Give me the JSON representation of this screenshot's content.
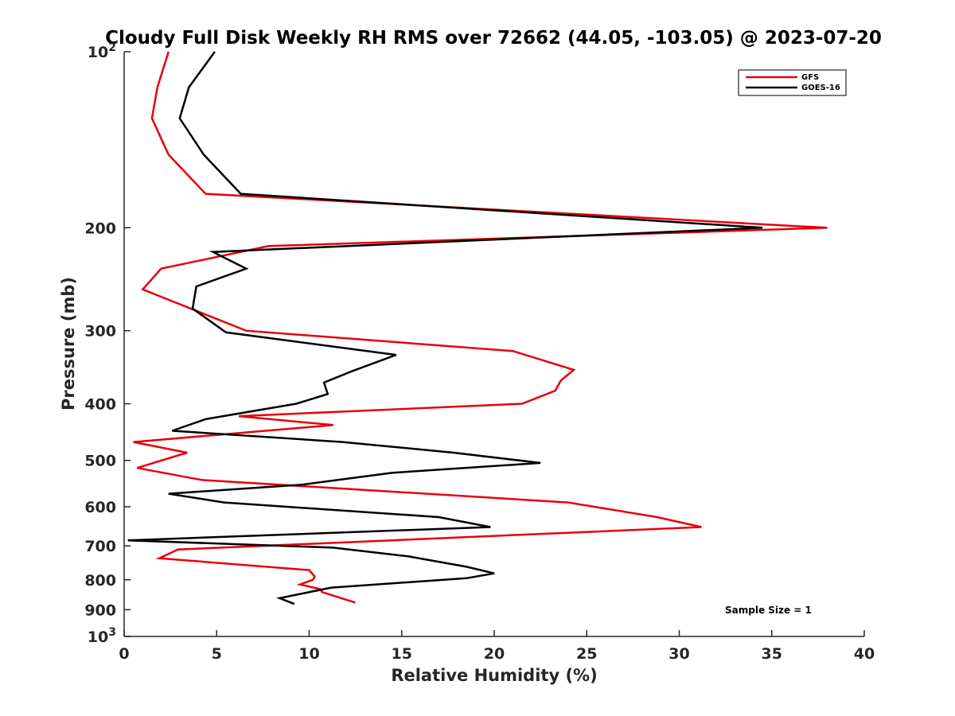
{
  "chart_data": {
    "type": "line",
    "title": "Cloudy Full Disk Weekly RH RMS over 72662 (44.05, -103.05) @ 2023-07-20",
    "xlabel": "Relative Humidity (%)",
    "ylabel": "Pressure (mb)",
    "xlim": [
      0,
      40
    ],
    "ylim": [
      100,
      1000
    ],
    "y_scale": "log",
    "y_reversed": true,
    "x_ticks": [
      "0",
      "5",
      "10",
      "15",
      "20",
      "25",
      "30",
      "35",
      "40"
    ],
    "y_ticks": [
      {
        "value": 100,
        "base": "10",
        "exp": "2"
      },
      {
        "value": 200,
        "label": "200"
      },
      {
        "value": 300,
        "label": "300"
      },
      {
        "value": 400,
        "label": "400"
      },
      {
        "value": 500,
        "label": "500"
      },
      {
        "value": 600,
        "label": "600"
      },
      {
        "value": 700,
        "label": "700"
      },
      {
        "value": 800,
        "label": "800"
      },
      {
        "value": 900,
        "label": "900"
      },
      {
        "value": 1000,
        "base": "10",
        "exp": "3"
      }
    ],
    "grid": false,
    "legend_position": "top-right",
    "annotation": "Sample Size = 1",
    "series": [
      {
        "name": "GFS",
        "color": "#e8000b",
        "points": [
          [
            2.4,
            100
          ],
          [
            1.8,
            115
          ],
          [
            1.5,
            130
          ],
          [
            2.4,
            150
          ],
          [
            4.4,
            175
          ],
          [
            38.0,
            200
          ],
          [
            7.8,
            215
          ],
          [
            2.0,
            235
          ],
          [
            1.0,
            255
          ],
          [
            6.6,
            300
          ],
          [
            21.0,
            325
          ],
          [
            24.3,
            350
          ],
          [
            23.6,
            365
          ],
          [
            23.3,
            380
          ],
          [
            21.5,
            400
          ],
          [
            6.2,
            420
          ],
          [
            11.3,
            435
          ],
          [
            0.5,
            465
          ],
          [
            3.4,
            485
          ],
          [
            0.7,
            515
          ],
          [
            4.2,
            540
          ],
          [
            24.0,
            590
          ],
          [
            28.8,
            625
          ],
          [
            31.2,
            650
          ],
          [
            2.9,
            710
          ],
          [
            1.9,
            735
          ],
          [
            10.0,
            770
          ],
          [
            10.3,
            790
          ],
          [
            10.2,
            800
          ],
          [
            9.5,
            815
          ],
          [
            10.6,
            830
          ],
          [
            10.7,
            840
          ],
          [
            12.5,
            875
          ]
        ]
      },
      {
        "name": "GOES-16",
        "color": "#000000",
        "points": [
          [
            4.9,
            100
          ],
          [
            3.5,
            115
          ],
          [
            3.0,
            130
          ],
          [
            4.3,
            150
          ],
          [
            6.3,
            175
          ],
          [
            34.5,
            200
          ],
          [
            4.8,
            220
          ],
          [
            6.6,
            235
          ],
          [
            3.9,
            252
          ],
          [
            3.7,
            275
          ],
          [
            5.5,
            302
          ],
          [
            14.7,
            330
          ],
          [
            12.3,
            352
          ],
          [
            10.8,
            368
          ],
          [
            11.0,
            385
          ],
          [
            9.3,
            400
          ],
          [
            4.4,
            425
          ],
          [
            2.6,
            445
          ],
          [
            11.8,
            465
          ],
          [
            17.8,
            485
          ],
          [
            22.5,
            505
          ],
          [
            14.5,
            525
          ],
          [
            9.6,
            550
          ],
          [
            2.4,
            570
          ],
          [
            5.4,
            590
          ],
          [
            17.0,
            625
          ],
          [
            19.8,
            650
          ],
          [
            0.2,
            685
          ],
          [
            11.3,
            705
          ],
          [
            15.4,
            730
          ],
          [
            18.5,
            760
          ],
          [
            20.0,
            780
          ],
          [
            18.5,
            795
          ],
          [
            11.2,
            825
          ],
          [
            8.4,
            860
          ],
          [
            9.2,
            880
          ]
        ]
      }
    ]
  }
}
